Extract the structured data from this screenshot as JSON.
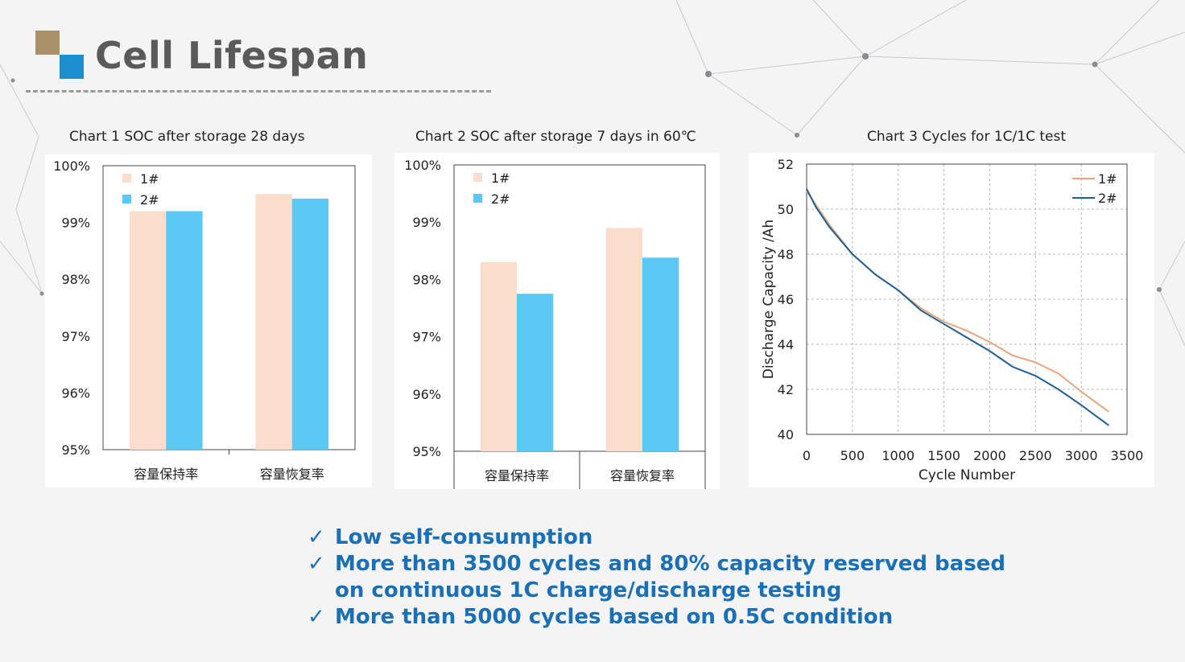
{
  "header": {
    "title": "Cell Lifespan"
  },
  "colors": {
    "series1": "#fbdccd",
    "series2": "#5bc8f5",
    "line1": "#e8a57c",
    "line2": "#1f5f95",
    "bullet_text": "#1a6fb5",
    "logo_gold": "#a89068",
    "logo_blue": "#1b8fd0"
  },
  "charts": [
    {
      "caption": "Chart 1 SOC after storage 28 days"
    },
    {
      "caption": "Chart 2 SOC after storage 7 days in 60℃"
    },
    {
      "caption": "Chart 3 Cycles for 1C/1C test"
    }
  ],
  "chart_data": [
    {
      "type": "bar",
      "title": "Chart 1 SOC after storage 28 days",
      "categories": [
        "容量保持率",
        "容量恢复率"
      ],
      "series": [
        {
          "name": "1#",
          "values": [
            99.2,
            99.5
          ]
        },
        {
          "name": "2#",
          "values": [
            99.2,
            99.42
          ]
        }
      ],
      "ylim": [
        95,
        100
      ],
      "yticks": [
        "95%",
        "96%",
        "97%",
        "98%",
        "99%",
        "100%"
      ],
      "legend": "top-left",
      "grid": false
    },
    {
      "type": "bar",
      "title": "Chart 2 SOC after storage 7 days in 60℃",
      "categories": [
        "容量保持率",
        "容量恢复率"
      ],
      "series": [
        {
          "name": "1#",
          "values": [
            98.3,
            98.9
          ]
        },
        {
          "name": "2#",
          "values": [
            97.75,
            98.38
          ]
        }
      ],
      "ylim": [
        95,
        100
      ],
      "yticks": [
        "95%",
        "96%",
        "97%",
        "98%",
        "99%",
        "100%"
      ],
      "legend": "top-left",
      "grid": false
    },
    {
      "type": "line",
      "title": "Chart 3 Cycles for 1C/1C test",
      "xlabel": "Cycle Number",
      "ylabel": "Discharge Capacity /Ah",
      "xlim": [
        0,
        3500
      ],
      "ylim": [
        40,
        52
      ],
      "xticks": [
        0,
        500,
        1000,
        1500,
        2000,
        2500,
        3000,
        3500
      ],
      "yticks": [
        40,
        42,
        44,
        46,
        48,
        50,
        52
      ],
      "grid": true,
      "legend": "top-right",
      "series": [
        {
          "name": "1#",
          "x": [
            0,
            100,
            250,
            500,
            750,
            1000,
            1250,
            1500,
            1750,
            2000,
            2250,
            2500,
            2750,
            3000,
            3200,
            3300
          ],
          "y": [
            50.8,
            50.2,
            49.3,
            48.0,
            47.1,
            46.4,
            45.6,
            45.0,
            44.6,
            44.1,
            43.5,
            43.2,
            42.7,
            41.9,
            41.3,
            41.0
          ]
        },
        {
          "name": "2#",
          "x": [
            0,
            100,
            250,
            500,
            750,
            1000,
            1250,
            1500,
            1750,
            2000,
            2250,
            2500,
            2750,
            3000,
            3200,
            3300
          ],
          "y": [
            50.9,
            50.1,
            49.2,
            48.0,
            47.1,
            46.4,
            45.5,
            44.9,
            44.3,
            43.7,
            43.0,
            42.6,
            42.0,
            41.3,
            40.7,
            40.4
          ]
        }
      ]
    }
  ],
  "bullets": [
    {
      "check": "✓",
      "text": "Low self-consumption"
    },
    {
      "check": "✓",
      "text": "More than 3500 cycles and 80% capacity reserved based on continuous 1C  charge/discharge testing"
    },
    {
      "check": "✓",
      "text": "More than 5000 cycles based on 0.5C condition"
    }
  ]
}
